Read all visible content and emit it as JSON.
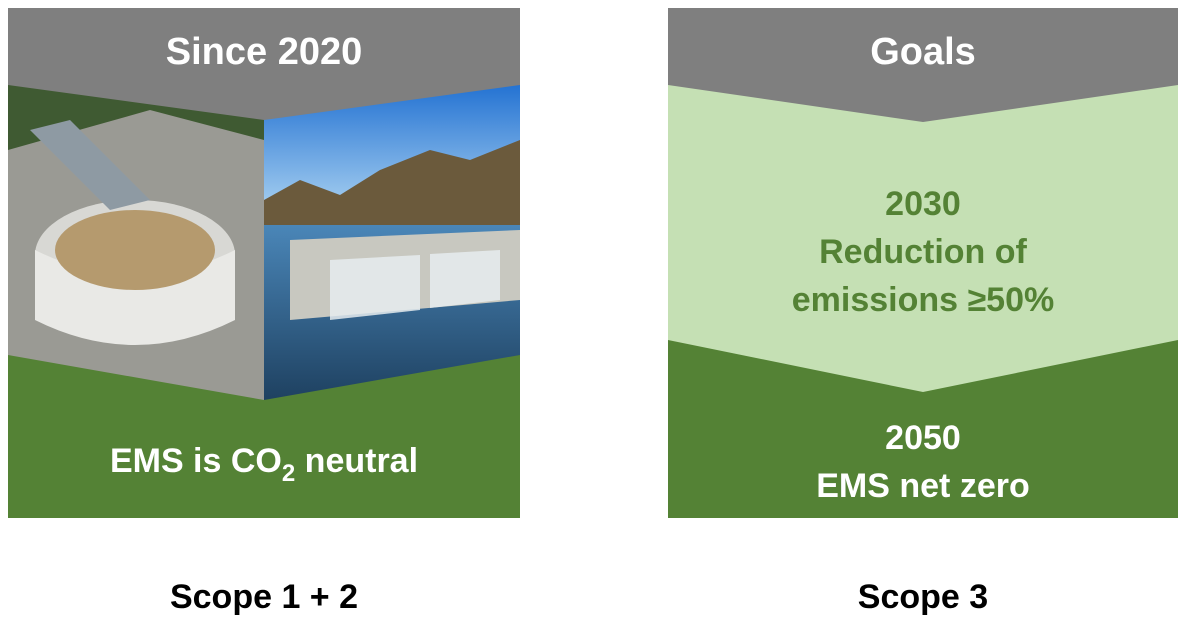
{
  "panels": [
    {
      "header": "Since 2020",
      "body": {
        "text_before": "EMS is CO",
        "subscript": "2",
        "text_after": " neutral"
      },
      "label": "Scope 1 + 2"
    },
    {
      "header": "Goals",
      "milestones": [
        {
          "year": "2030",
          "lines": [
            "Reduction of",
            "emissions ≥50%"
          ]
        },
        {
          "year": "2050",
          "lines": [
            "EMS net zero"
          ]
        }
      ],
      "label": "Scope 3"
    }
  ]
}
